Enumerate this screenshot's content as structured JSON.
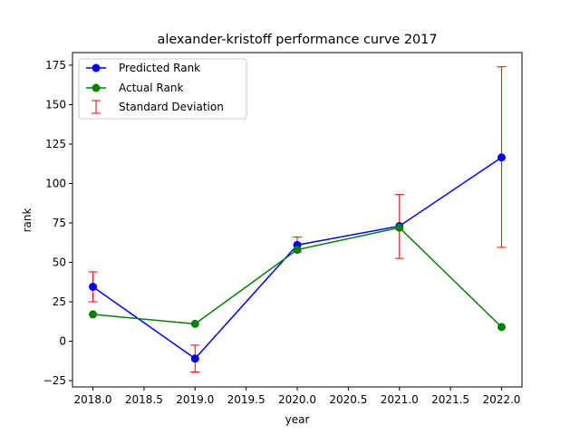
{
  "chart_data": {
    "type": "line",
    "title": "alexander-kristoff performance curve 2017",
    "xlabel": "year",
    "ylabel": "rank",
    "x": [
      2018,
      2019,
      2020,
      2021,
      2022
    ],
    "xlim": [
      2017.8,
      2022.2
    ],
    "ylim": [
      -29,
      183
    ],
    "xticks": [
      2018.0,
      2018.5,
      2019.0,
      2019.5,
      2020.0,
      2020.5,
      2021.0,
      2021.5,
      2022.0
    ],
    "xtick_labels": [
      "2018.0",
      "2018.5",
      "2019.0",
      "2019.5",
      "2020.0",
      "2020.5",
      "2021.0",
      "2021.5",
      "2022.0"
    ],
    "yticks": [
      -25,
      0,
      25,
      50,
      75,
      100,
      125,
      150,
      175
    ],
    "ytick_labels": [
      "−25",
      "0",
      "25",
      "50",
      "75",
      "100",
      "125",
      "150",
      "175"
    ],
    "grid": false,
    "legend_position": "top-left",
    "series": [
      {
        "name": "Predicted Rank",
        "color": "#0000ff",
        "values": [
          34.5,
          -11,
          61,
          73,
          116.5
        ]
      },
      {
        "name": "Actual Rank",
        "color": "#008000",
        "values": [
          17,
          11,
          58,
          72,
          9
        ]
      }
    ],
    "error_bars": {
      "name": "Standard Deviation",
      "color": "#ff0000",
      "center": [
        34.5,
        -11,
        61,
        73,
        116.5
      ],
      "lower": [
        25,
        -19.5,
        56.5,
        52.5,
        59.5
      ],
      "upper": [
        44,
        -2.5,
        66,
        93,
        174
      ]
    }
  }
}
